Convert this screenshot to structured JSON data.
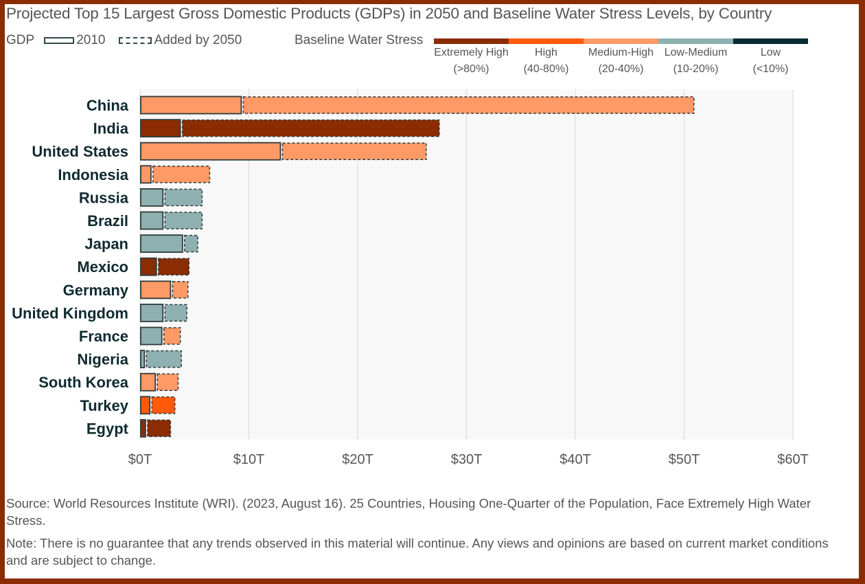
{
  "chart_data": {
    "type": "bar",
    "orientation": "horizontal",
    "stacked": true,
    "title": "Projected Top 15 Largest Gross Domestic Products (GDPs) in 2050 and Baseline Water Stress Levels, by Country",
    "xlabel": "",
    "ylabel": "",
    "xlim": [
      0,
      60
    ],
    "x_ticks": [
      0,
      10,
      20,
      30,
      40,
      50,
      60
    ],
    "x_tick_labels": [
      "$0T",
      "$10T",
      "$20T",
      "$30T",
      "$40T",
      "$50T",
      "$60T"
    ],
    "grid": "vertical",
    "units": "trillion USD",
    "categories": [
      "China",
      "India",
      "United States",
      "Indonesia",
      "Russia",
      "Brazil",
      "Japan",
      "Mexico",
      "Germany",
      "United Kingdom",
      "France",
      "Nigeria",
      "South Korea",
      "Turkey",
      "Egypt"
    ],
    "series": [
      {
        "name": "2010",
        "style": "solid",
        "values": [
          9.3,
          3.7,
          12.9,
          1.0,
          2.1,
          2.1,
          3.9,
          1.5,
          2.8,
          2.1,
          2.0,
          0.4,
          1.4,
          0.9,
          0.5
        ]
      },
      {
        "name": "Added by 2050",
        "style": "dashed",
        "values": [
          41.6,
          23.8,
          13.4,
          5.4,
          3.6,
          3.6,
          1.4,
          3.0,
          1.6,
          2.2,
          1.7,
          3.4,
          2.1,
          2.3,
          2.3
        ]
      }
    ],
    "water_stress_2010": [
      "Medium-High",
      "Extremely High",
      "Medium-High",
      "Medium-High",
      "Low-Medium",
      "Low-Medium",
      "Low-Medium",
      "Extremely High",
      "Medium-High",
      "Low-Medium",
      "Low-Medium",
      "Low-Medium",
      "Medium-High",
      "High",
      "Extremely High"
    ],
    "water_stress_2050": [
      "Medium-High",
      "Extremely High",
      "Medium-High",
      "Medium-High",
      "Low-Medium",
      "Low-Medium",
      "Low-Medium",
      "Extremely High",
      "Medium-High",
      "Low-Medium",
      "Medium-High",
      "Low-Medium",
      "Medium-High",
      "High",
      "Extremely High"
    ],
    "legend": {
      "gdp_label": "GDP",
      "gdp_items": [
        "2010",
        "Added by 2050"
      ],
      "water_stress_label": "Baseline Water Stress",
      "water_stress_levels": [
        {
          "name": "Extremely High",
          "range": "(>80%)",
          "color": "#8b2c02"
        },
        {
          "name": "High",
          "range": "(40-80%)",
          "color": "#ff5a0a"
        },
        {
          "name": "Medium-High",
          "range": "(20-40%)",
          "color": "#ff9966"
        },
        {
          "name": "Low-Medium",
          "range": "(10-20%)",
          "color": "#8fb0b1"
        },
        {
          "name": "Low",
          "range": "(<10%)",
          "color": "#062b33"
        }
      ]
    }
  },
  "footer": {
    "source": "Source: World Resources Institute (WRI). (2023, August 16). 25 Countries, Housing One-Quarter of the Population, Face Extremely High Water Stress.",
    "note": "Note: There is no guarantee that any trends observed in this material will continue. Any views and opinions are based on current market conditions and are subject to change."
  },
  "colors": {
    "frame": "#8b2c02",
    "outline": "#2e3b3c",
    "label": "#0f2a30",
    "text": "#555555"
  }
}
